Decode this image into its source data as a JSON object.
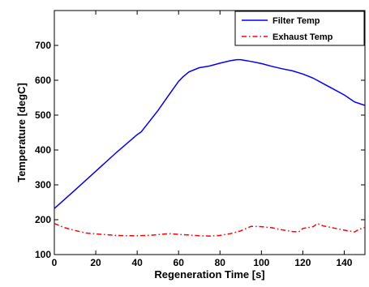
{
  "chart_data": {
    "type": "line",
    "title": "",
    "xlabel": "Regeneration Time [s]",
    "ylabel": "Temperature [degC]",
    "xlim": [
      0,
      150
    ],
    "ylim": [
      100,
      800
    ],
    "xticks": [
      0,
      20,
      40,
      60,
      80,
      100,
      120,
      140
    ],
    "yticks": [
      100,
      200,
      300,
      400,
      500,
      600,
      700
    ],
    "grid": false,
    "legend_position": "top-right",
    "series": [
      {
        "name": "Filter Temp",
        "color": "#0000ff",
        "line_style": "solid",
        "x": [
          0,
          10,
          20,
          30,
          40,
          42,
          50,
          55,
          60,
          62,
          65,
          70,
          75,
          80,
          85,
          88,
          90,
          92,
          95,
          100,
          105,
          110,
          115,
          120,
          125,
          130,
          135,
          140,
          145,
          150
        ],
        "y": [
          232,
          285,
          339,
          393,
          444,
          452,
          513,
          555,
          597,
          609,
          624,
          636,
          641,
          649,
          656,
          659,
          659,
          657,
          654,
          648,
          640,
          633,
          627,
          618,
          606,
          590,
          574,
          558,
          538,
          528
        ]
      },
      {
        "name": "Exhaust Temp",
        "color": "#ff0000",
        "line_style": "dash-dot",
        "x": [
          0,
          5,
          10,
          15,
          20,
          25,
          30,
          35,
          40,
          45,
          50,
          55,
          60,
          65,
          70,
          75,
          80,
          85,
          90,
          93,
          95,
          100,
          105,
          110,
          115,
          118,
          120,
          125,
          127,
          130,
          135,
          140,
          145,
          147,
          150
        ],
        "y": [
          189,
          177,
          169,
          162,
          159,
          157,
          155,
          154,
          154,
          155,
          157,
          160,
          158,
          156,
          154,
          153,
          155,
          160,
          168,
          176,
          181,
          180,
          177,
          171,
          166,
          165,
          175,
          180,
          189,
          182,
          176,
          170,
          165,
          172,
          178
        ]
      }
    ]
  }
}
